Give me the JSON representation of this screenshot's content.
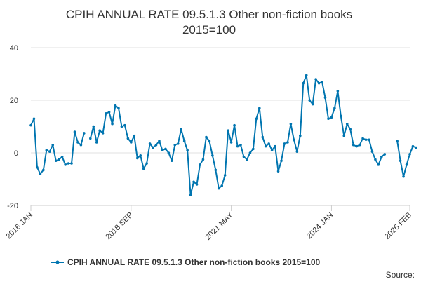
{
  "chart_data": {
    "type": "line",
    "title": "CPIH ANNUAL RATE 09.5.1.3 Other non-fiction books 2015=100",
    "title_lines": [
      "CPIH ANNUAL RATE 09.5.1.3 Other non-fiction books",
      "2015=100"
    ],
    "xlabel": "",
    "ylabel": "",
    "x_ticks": [
      "2016 JAN",
      "2018 SEP",
      "2021 MAY",
      "2024 JAN",
      "2026 FEB"
    ],
    "y_ticks": [
      "40",
      "20",
      "0",
      "-20"
    ],
    "ylim": [
      -20,
      40
    ],
    "grid": true,
    "legend_position": "bottom",
    "source_label": "Source:",
    "colors": {
      "series": "#0075b0",
      "grid": "#e0e0e0",
      "axis": "#cccccc",
      "text": "#333333"
    },
    "series": [
      {
        "name": "CPIH ANNUAL RATE 09.5.1.3 Other non-fiction books 2015=100",
        "start": "2016-01",
        "values": [
          10.5,
          13.0,
          -5.5,
          -8.0,
          -6.5,
          1.0,
          0.5,
          3.0,
          -3.0,
          -2.5,
          -1.5,
          -4.5,
          -4.0,
          -4.0,
          8.0,
          4.0,
          3.0,
          7.5,
          null,
          5.5,
          10.0,
          4.0,
          8.5,
          7.5,
          15.0,
          15.5,
          11.0,
          18.0,
          17.0,
          10.0,
          10.5,
          5.5,
          4.0,
          6.5,
          -2.0,
          -1.0,
          -6.0,
          -4.0,
          3.5,
          2.0,
          3.0,
          4.5,
          1.0,
          1.5,
          0.0,
          -3.0,
          3.0,
          3.5,
          9.0,
          4.5,
          1.0,
          -16.0,
          -11.0,
          -12.0,
          -4.5,
          -2.5,
          6.0,
          4.5,
          -1.0,
          -6.5,
          -13.5,
          -12.5,
          -8.5,
          8.5,
          4.0,
          10.5,
          2.5,
          3.0,
          -1.5,
          -2.5,
          0.0,
          1.5,
          13.0,
          17.0,
          6.0,
          2.5,
          3.5,
          1.0,
          2.5,
          -7.0,
          -3.0,
          3.5,
          4.0,
          11.0,
          5.0,
          0.5,
          6.5,
          26.5,
          29.5,
          20.0,
          18.5,
          28.0,
          26.5,
          27.0,
          21.0,
          13.0,
          13.5,
          17.0,
          23.5,
          14.0,
          6.5,
          11.0,
          9.0,
          3.0,
          2.5,
          3.0,
          5.5,
          5.0,
          5.0,
          0.5,
          -2.5,
          -4.5,
          -1.5,
          -0.5,
          null,
          null,
          null,
          4.5,
          -3.0,
          -9.0,
          -4.5,
          -0.5,
          2.5,
          2.0
        ]
      }
    ]
  }
}
